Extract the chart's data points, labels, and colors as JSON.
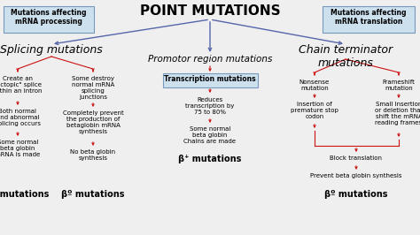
{
  "bg_color": "#efefef",
  "title": "POINT MUTATIONS",
  "box_left_title": "Mutations affecting\nmRNA processing",
  "box_right_title": "Mutations affecting\nmRNA translation",
  "box_facecolor": "#cce0ee",
  "box_edgecolor": "#7799bb",
  "blue": "#5566aa",
  "red": "#cc1111"
}
